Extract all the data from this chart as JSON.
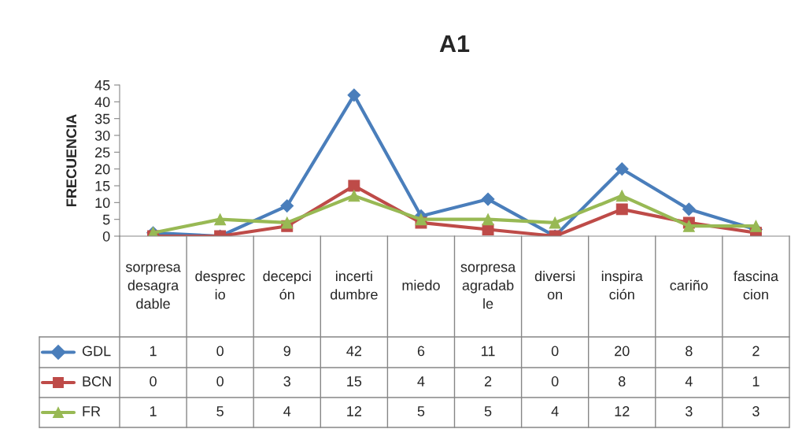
{
  "chart_data": {
    "type": "line",
    "title": "A1",
    "ylabel": "FRECUENCIA",
    "categories": [
      "sorpresa desagradable",
      "desprecio",
      "decepción",
      "incertidumbre",
      "miedo",
      "sorpresa agradable",
      "diversion",
      "inspiración",
      "cariño",
      "fascinacion"
    ],
    "series": [
      {
        "name": "GDL",
        "color": "#4a7ebb",
        "marker": "diamond",
        "values": [
          1,
          0,
          9,
          42,
          6,
          11,
          0,
          20,
          8,
          2
        ]
      },
      {
        "name": "BCN",
        "color": "#be4b48",
        "marker": "square",
        "values": [
          0,
          0,
          3,
          15,
          4,
          2,
          0,
          8,
          4,
          1
        ]
      },
      {
        "name": "FR",
        "color": "#98b954",
        "marker": "triangle",
        "values": [
          1,
          5,
          4,
          12,
          5,
          5,
          4,
          12,
          3,
          3
        ]
      }
    ],
    "ylim": [
      0,
      45
    ],
    "yticks": [
      0,
      5,
      10,
      15,
      20,
      25,
      30,
      35,
      40,
      45
    ],
    "grid": false,
    "legend": "bottom left",
    "data_labels": true
  }
}
